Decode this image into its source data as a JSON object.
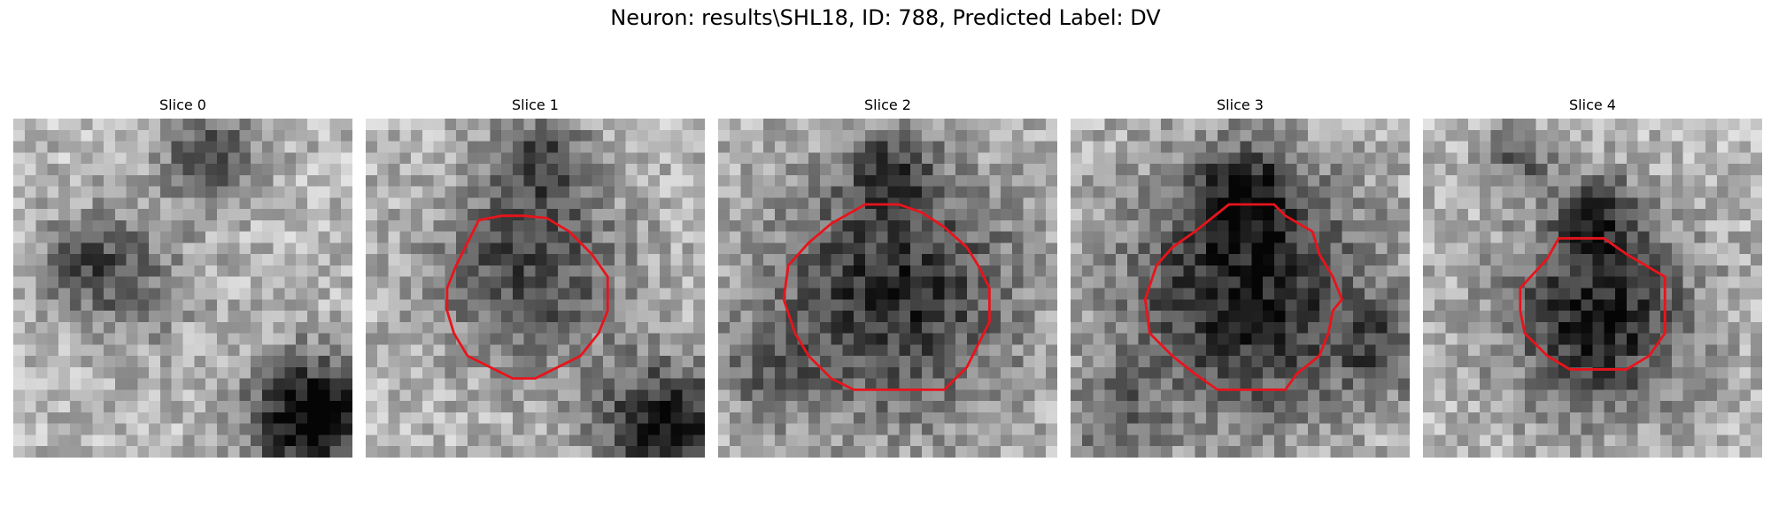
{
  "figure": {
    "title": "Neuron: results\\SHL18, ID: 788, Predicted Label: DV",
    "contour_color": "#e8141c",
    "colormap": "gray",
    "panels": [
      {
        "label": "Slice 0",
        "has_contour": false
      },
      {
        "label": "Slice 1",
        "has_contour": true
      },
      {
        "label": "Slice 2",
        "has_contour": true
      },
      {
        "label": "Slice 3",
        "has_contour": true
      },
      {
        "label": "Slice 4",
        "has_contour": true
      }
    ]
  }
}
